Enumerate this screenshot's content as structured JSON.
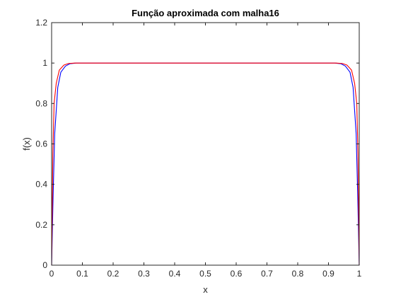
{
  "chart_data": {
    "type": "line",
    "title": "Função aproximada com malha16",
    "xlabel": "x",
    "ylabel": "f(x)",
    "xlim": [
      0,
      1
    ],
    "ylim": [
      0,
      1.2
    ],
    "grid": false,
    "box": true,
    "xticks": [
      0,
      0.1,
      0.2,
      0.3,
      0.4,
      0.5,
      0.6,
      0.7,
      0.8,
      0.9,
      1
    ],
    "xtick_labels": [
      "0",
      "0.1",
      "0.2",
      "0.3",
      "0.4",
      "0.5",
      "0.6",
      "0.7",
      "0.8",
      "0.9",
      "1"
    ],
    "yticks": [
      0,
      0.2,
      0.4,
      0.6,
      0.8,
      1,
      1.2
    ],
    "ytick_labels": [
      "0",
      "0.2",
      "0.4",
      "0.6",
      "0.8",
      "1",
      "1.2"
    ],
    "series": [
      {
        "color": "#0000ff",
        "x": [
          0,
          0.005,
          0.01,
          0.02,
          0.03,
          0.045,
          0.06,
          0.08,
          0.1,
          0.2,
          0.3,
          0.4,
          0.5,
          0.6,
          0.7,
          0.8,
          0.9,
          0.92,
          0.94,
          0.955,
          0.97,
          0.98,
          0.99,
          0.995,
          1
        ],
        "y": [
          0,
          0.35,
          0.65,
          0.88,
          0.955,
          0.985,
          0.997,
          1,
          1,
          1,
          1,
          1,
          1,
          1,
          1,
          1,
          1,
          1,
          0.997,
          0.985,
          0.955,
          0.88,
          0.65,
          0.35,
          0
        ]
      },
      {
        "color": "#ff0000",
        "x": [
          0,
          0.004,
          0.008,
          0.015,
          0.025,
          0.04,
          0.055,
          0.075,
          0.1,
          0.2,
          0.3,
          0.4,
          0.5,
          0.6,
          0.7,
          0.8,
          0.9,
          0.925,
          0.945,
          0.96,
          0.975,
          0.985,
          0.992,
          0.996,
          1
        ],
        "y": [
          0,
          0.55,
          0.8,
          0.9,
          0.965,
          0.99,
          0.998,
          1,
          1,
          1,
          1,
          1,
          1,
          1,
          1,
          1,
          1,
          1,
          0.998,
          0.99,
          0.965,
          0.9,
          0.8,
          0.55,
          0
        ]
      }
    ]
  }
}
